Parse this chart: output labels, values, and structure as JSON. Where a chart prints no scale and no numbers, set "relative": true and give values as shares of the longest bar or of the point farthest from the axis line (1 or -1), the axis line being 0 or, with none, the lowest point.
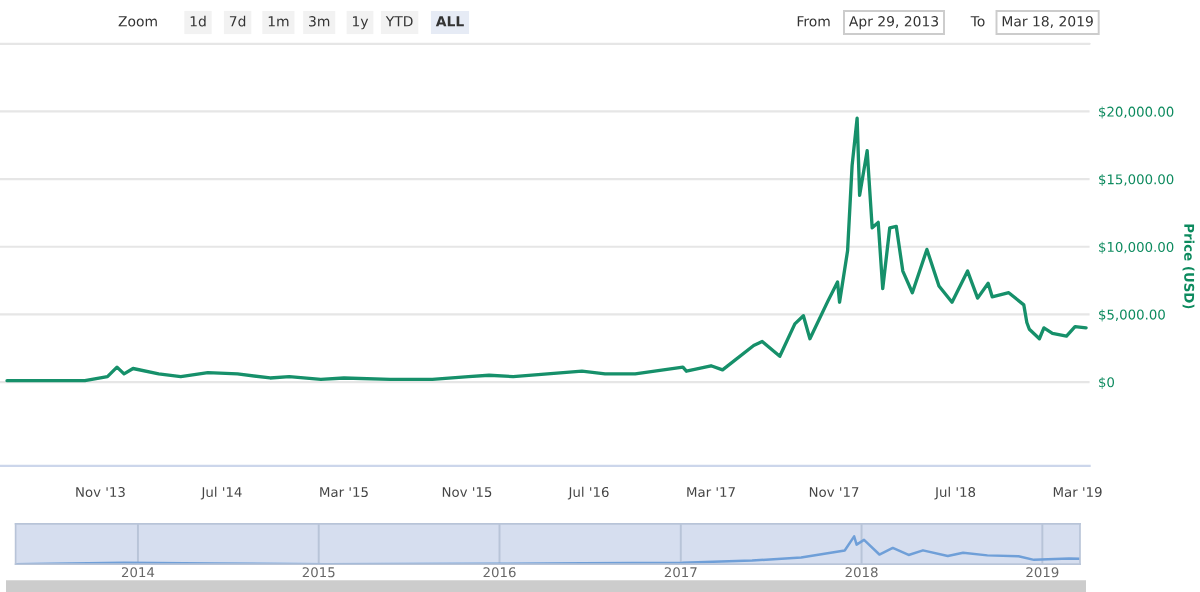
{
  "chart_data": [
    {
      "type": "line",
      "ylabel": "Price (USD)",
      "annotations": [
        "Zoom",
        "1d",
        "7d",
        "1m",
        "3m",
        "1y",
        "YTD",
        "ALL",
        "From",
        "Apr 29, 2013",
        "To",
        "Mar 18, 2019"
      ],
      "x": [
        "2013-04-29",
        "2013-07-01",
        "2013-10-01",
        "2013-11-15",
        "2013-12-04",
        "2013-12-18",
        "2014-01-05",
        "2014-02-25",
        "2014-04-10",
        "2014-06-03",
        "2014-08-01",
        "2014-10-05",
        "2014-11-12",
        "2015-01-14",
        "2015-03-01",
        "2015-06-01",
        "2015-08-24",
        "2015-11-04",
        "2015-12-15",
        "2016-02-01",
        "2016-06-17",
        "2016-08-02",
        "2016-10-01",
        "2017-01-04",
        "2017-01-11",
        "2017-03-01",
        "2017-03-24",
        "2017-05-25",
        "2017-06-11",
        "2017-07-16",
        "2017-08-15",
        "2017-09-01",
        "2017-09-14",
        "2017-10-20",
        "2017-11-08",
        "2017-11-12",
        "2017-11-28",
        "2017-12-07",
        "2017-12-17",
        "2017-12-22",
        "2018-01-06",
        "2018-01-16",
        "2018-01-28",
        "2018-02-06",
        "2018-02-20",
        "2018-03-05",
        "2018-03-18",
        "2018-04-06",
        "2018-05-05",
        "2018-05-29",
        "2018-06-24",
        "2018-07-25",
        "2018-08-14",
        "2018-09-04",
        "2018-09-12",
        "2018-10-15",
        "2018-11-14",
        "2018-11-20",
        "2018-11-25",
        "2018-12-15",
        "2018-12-24",
        "2019-01-10",
        "2019-02-07",
        "2019-02-24",
        "2019-03-18"
      ],
      "series": [
        {
          "color": "#16906a",
          "values": [
            100,
            100,
            100,
            400,
            1100,
            600,
            1000,
            600,
            400,
            700,
            600,
            300,
            400,
            200,
            300,
            200,
            200,
            400,
            500,
            400,
            800,
            600,
            600,
            1100,
            800,
            1200,
            900,
            2700,
            3000,
            1900,
            4300,
            4900,
            3200,
            6000,
            7400,
            5900,
            9700,
            16000,
            19500,
            13800,
            17100,
            11400,
            11800,
            6900,
            11400,
            11500,
            8200,
            6600,
            9800,
            7100,
            5900,
            8200,
            6200,
            7300,
            6300,
            6600,
            5700,
            4400,
            3900,
            3200,
            4000,
            3600,
            3400,
            4100,
            4000
          ]
        }
      ],
      "xlim": [
        "2013-04-15",
        "2019-03-25"
      ],
      "xticks": [
        {
          "value": "2013-11-01",
          "label": "Nov '13"
        },
        {
          "value": "2014-07-01",
          "label": "Jul '14"
        },
        {
          "value": "2015-03-01",
          "label": "Mar '15"
        },
        {
          "value": "2015-11-01",
          "label": "Nov '15"
        },
        {
          "value": "2016-07-01",
          "label": "Jul '16"
        },
        {
          "value": "2017-03-01",
          "label": "Mar '17"
        },
        {
          "value": "2017-11-01",
          "label": "Nov '17"
        },
        {
          "value": "2018-07-01",
          "label": "Jul '18"
        },
        {
          "value": "2019-03-01",
          "label": "Mar '19"
        }
      ],
      "ylim": [
        -6200,
        25000
      ],
      "yticks": [
        {
          "value": 0,
          "label": "$0"
        },
        {
          "value": 5000,
          "label": "$5,000.00"
        },
        {
          "value": 10000,
          "label": "$10,000.00"
        },
        {
          "value": 15000,
          "label": "$15,000.00"
        },
        {
          "value": 20000,
          "label": "$20,000.00"
        }
      ],
      "grid": "y",
      "legend": false,
      "marker": "none",
      "line_style": "solid"
    },
    {
      "type": "line",
      "relative": true,
      "tick_labels": "x",
      "grid": "x",
      "legend": false,
      "marker": "none",
      "line_style": "solid",
      "x": [
        "2013-04-29",
        "2013-12-04",
        "2014-06-03",
        "2015-01-14",
        "2015-12-15",
        "2016-06-17",
        "2017-01-04",
        "2017-05-25",
        "2017-09-01",
        "2017-11-28",
        "2017-12-17",
        "2017-12-22",
        "2018-01-06",
        "2018-02-06",
        "2018-03-05",
        "2018-04-06",
        "2018-05-05",
        "2018-06-24",
        "2018-07-25",
        "2018-09-12",
        "2018-11-14",
        "2018-12-15",
        "2019-02-24",
        "2019-03-18"
      ],
      "series": [
        {
          "color": "#6f9fd8",
          "values": [
            0,
            0.05,
            0.025,
            0,
            0.015,
            0.03,
            0.05,
            0.13,
            0.244,
            0.493,
            1,
            0.705,
            0.876,
            0.348,
            0.586,
            0.332,
            0.498,
            0.296,
            0.415,
            0.317,
            0.286,
            0.156,
            0.203,
            0.195
          ]
        }
      ],
      "xlim": [
        "2013-04-29",
        "2019-03-18"
      ],
      "xticks": [
        {
          "value": "2014-01-01",
          "label": "2014"
        },
        {
          "value": "2015-01-01",
          "label": "2015"
        },
        {
          "value": "2016-01-01",
          "label": "2016"
        },
        {
          "value": "2017-01-01",
          "label": "2017"
        },
        {
          "value": "2018-01-01",
          "label": "2018"
        },
        {
          "value": "2019-01-01",
          "label": "2019"
        }
      ]
    }
  ]
}
